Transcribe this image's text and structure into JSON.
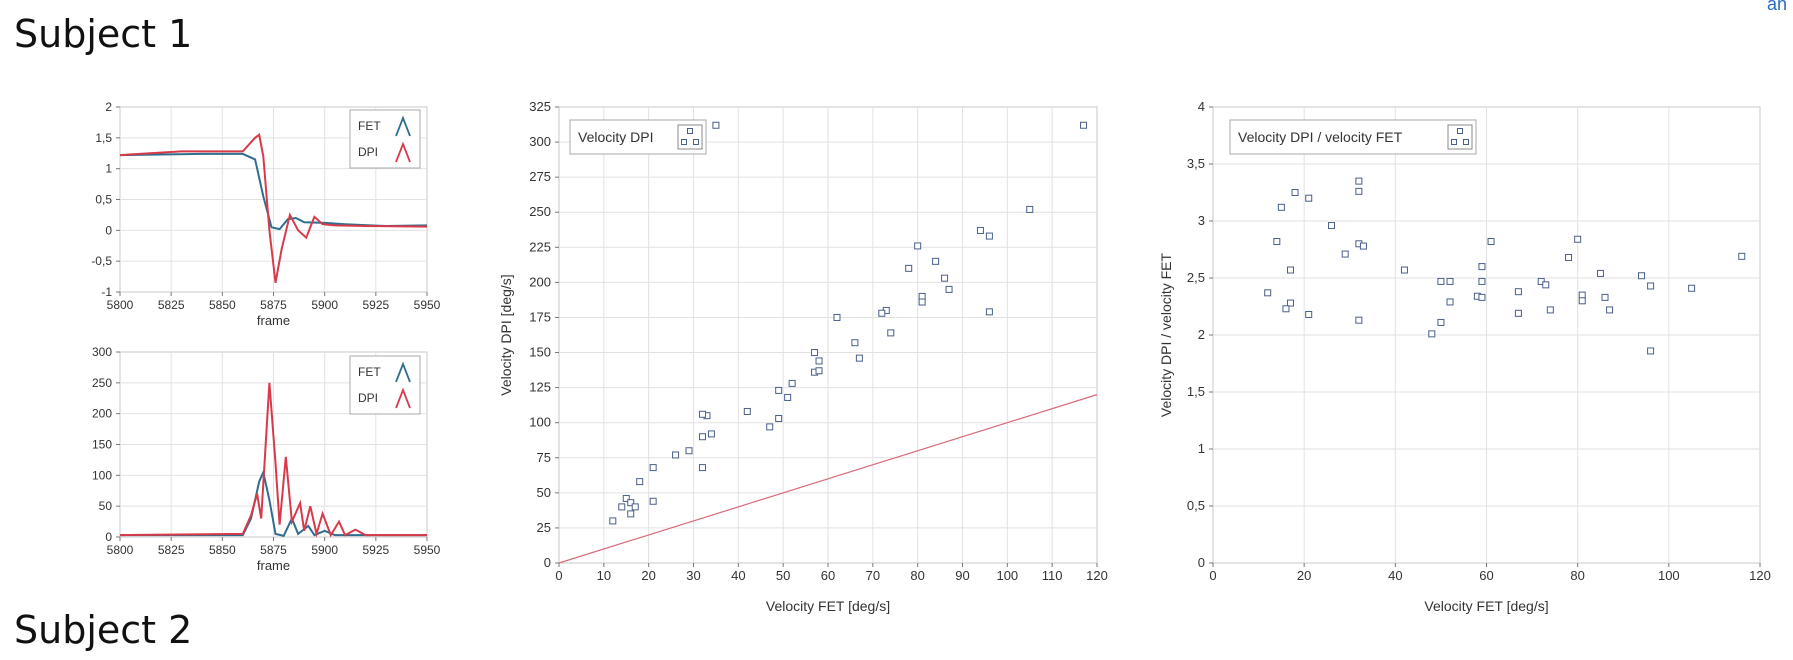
{
  "page": {
    "subject1_heading": "Subject 1",
    "subject2_heading": "Subject 2",
    "corner_text": "an"
  },
  "chart_data": [
    {
      "type": "line",
      "xlabel": "frame",
      "xlim": [
        5800,
        5950
      ],
      "ylim": [
        -1,
        2
      ],
      "xticks": [
        "5800",
        "5825",
        "5850",
        "5875",
        "5900",
        "5925",
        "5950"
      ],
      "yticks": [
        "2",
        "1,5",
        "1",
        "0,5",
        "0",
        "-0,5",
        "-1"
      ],
      "legend": [
        "FET",
        "DPI"
      ],
      "series": [
        {
          "name": "FET",
          "color": "#2f6e8e",
          "points": [
            [
              5800,
              1.22
            ],
            [
              5840,
              1.24
            ],
            [
              5860,
              1.24
            ],
            [
              5866,
              1.15
            ],
            [
              5870,
              0.55
            ],
            [
              5874,
              0.05
            ],
            [
              5878,
              0.02
            ],
            [
              5882,
              0.18
            ],
            [
              5886,
              0.2
            ],
            [
              5890,
              0.13
            ],
            [
              5900,
              0.12
            ],
            [
              5910,
              0.1
            ],
            [
              5930,
              0.07
            ],
            [
              5950,
              0.08
            ]
          ]
        },
        {
          "name": "DPI",
          "color": "#d83a4a",
          "points": [
            [
              5800,
              1.22
            ],
            [
              5830,
              1.28
            ],
            [
              5860,
              1.28
            ],
            [
              5866,
              1.5
            ],
            [
              5868,
              1.55
            ],
            [
              5870,
              1.2
            ],
            [
              5873,
              0.0
            ],
            [
              5876,
              -0.85
            ],
            [
              5879,
              -0.3
            ],
            [
              5883,
              0.25
            ],
            [
              5887,
              0.0
            ],
            [
              5891,
              -0.12
            ],
            [
              5895,
              0.22
            ],
            [
              5899,
              0.1
            ],
            [
              5905,
              0.08
            ],
            [
              5920,
              0.07
            ],
            [
              5950,
              0.06
            ]
          ]
        }
      ]
    },
    {
      "type": "line",
      "xlabel": "frame",
      "xlim": [
        5800,
        5950
      ],
      "ylim": [
        0,
        300
      ],
      "xticks": [
        "5800",
        "5825",
        "5850",
        "5875",
        "5900",
        "5925",
        "5950"
      ],
      "yticks": [
        "300",
        "250",
        "200",
        "150",
        "100",
        "50",
        "0"
      ],
      "legend": [
        "FET",
        "DPI"
      ],
      "series": [
        {
          "name": "FET",
          "color": "#2f6e8e",
          "points": [
            [
              5800,
              3
            ],
            [
              5860,
              3
            ],
            [
              5864,
              30
            ],
            [
              5868,
              90
            ],
            [
              5870,
              105
            ],
            [
              5873,
              60
            ],
            [
              5876,
              5
            ],
            [
              5880,
              2
            ],
            [
              5884,
              30
            ],
            [
              5887,
              5
            ],
            [
              5892,
              18
            ],
            [
              5895,
              3
            ],
            [
              5900,
              10
            ],
            [
              5905,
              3
            ],
            [
              5950,
              3
            ]
          ]
        },
        {
          "name": "DPI",
          "color": "#d83a4a",
          "points": [
            [
              5800,
              3
            ],
            [
              5860,
              5
            ],
            [
              5864,
              35
            ],
            [
              5867,
              70
            ],
            [
              5869,
              30
            ],
            [
              5873,
              250
            ],
            [
              5876,
              120
            ],
            [
              5878,
              20
            ],
            [
              5881,
              130
            ],
            [
              5884,
              25
            ],
            [
              5888,
              55
            ],
            [
              5890,
              10
            ],
            [
              5893,
              50
            ],
            [
              5896,
              5
            ],
            [
              5899,
              38
            ],
            [
              5903,
              3
            ],
            [
              5907,
              25
            ],
            [
              5910,
              3
            ],
            [
              5915,
              12
            ],
            [
              5920,
              3
            ],
            [
              5950,
              3
            ]
          ]
        }
      ]
    },
    {
      "type": "scatter",
      "xlabel": "Velocity FET [deg/s]",
      "ylabel": "Velocity DPI [deg/s]",
      "xlim": [
        0,
        120
      ],
      "ylim": [
        0,
        325
      ],
      "xticks": [
        "0",
        "10",
        "20",
        "30",
        "40",
        "50",
        "60",
        "70",
        "80",
        "90",
        "100",
        "110",
        "120"
      ],
      "yticks": [
        "325",
        "300",
        "275",
        "250",
        "225",
        "200",
        "175",
        "150",
        "125",
        "100",
        "75",
        "50",
        "25",
        "0"
      ],
      "legend": [
        "Velocity DPI"
      ],
      "reference_line": [
        [
          0,
          0
        ],
        [
          120,
          120
        ]
      ],
      "points": [
        [
          35,
          312
        ],
        [
          117,
          312
        ],
        [
          105,
          252
        ],
        [
          94,
          237
        ],
        [
          96,
          233
        ],
        [
          80,
          226
        ],
        [
          84,
          215
        ],
        [
          78,
          210
        ],
        [
          86,
          203
        ],
        [
          87,
          195
        ],
        [
          81,
          190
        ],
        [
          81,
          186
        ],
        [
          62,
          175
        ],
        [
          73,
          180
        ],
        [
          72,
          178
        ],
        [
          96,
          179
        ],
        [
          74,
          164
        ],
        [
          66,
          157
        ],
        [
          57,
          150
        ],
        [
          58,
          144
        ],
        [
          67,
          146
        ],
        [
          57,
          136
        ],
        [
          58,
          137
        ],
        [
          52,
          128
        ],
        [
          49,
          123
        ],
        [
          51,
          118
        ],
        [
          33,
          105
        ],
        [
          32,
          106
        ],
        [
          42,
          108
        ],
        [
          47,
          97
        ],
        [
          49,
          103
        ],
        [
          34,
          92
        ],
        [
          32,
          90
        ],
        [
          29,
          80
        ],
        [
          26,
          77
        ],
        [
          21,
          68
        ],
        [
          32,
          68
        ],
        [
          18,
          58
        ],
        [
          15,
          46
        ],
        [
          16,
          43
        ],
        [
          14,
          40
        ],
        [
          17,
          40
        ],
        [
          16,
          35
        ],
        [
          21,
          44
        ],
        [
          12,
          30
        ]
      ]
    },
    {
      "type": "scatter",
      "xlabel": "Velocity FET [deg/s]",
      "ylabel": "Velocity DPI / velocity FET",
      "xlim": [
        0,
        120
      ],
      "ylim": [
        0,
        4
      ],
      "xticks": [
        "0",
        "20",
        "40",
        "60",
        "80",
        "100",
        "120"
      ],
      "yticks": [
        "4",
        "3,5",
        "3",
        "2,5",
        "2",
        "1,5",
        "1",
        "0,5",
        "0"
      ],
      "legend": [
        "Velocity DPI / velocity FET"
      ],
      "points": [
        [
          18,
          3.25
        ],
        [
          15,
          3.12
        ],
        [
          21,
          3.2
        ],
        [
          32,
          3.35
        ],
        [
          32,
          3.26
        ],
        [
          26,
          2.96
        ],
        [
          14,
          2.82
        ],
        [
          32,
          2.8
        ],
        [
          33,
          2.78
        ],
        [
          29,
          2.71
        ],
        [
          80,
          2.84
        ],
        [
          61,
          2.82
        ],
        [
          78,
          2.68
        ],
        [
          17,
          2.57
        ],
        [
          42,
          2.57
        ],
        [
          59,
          2.6
        ],
        [
          85,
          2.54
        ],
        [
          94,
          2.52
        ],
        [
          116,
          2.69
        ],
        [
          12,
          2.37
        ],
        [
          50,
          2.47
        ],
        [
          52,
          2.47
        ],
        [
          59,
          2.47
        ],
        [
          72,
          2.47
        ],
        [
          73,
          2.44
        ],
        [
          96,
          2.43
        ],
        [
          105,
          2.41
        ],
        [
          58,
          2.34
        ],
        [
          59,
          2.33
        ],
        [
          67,
          2.38
        ],
        [
          81,
          2.35
        ],
        [
          86,
          2.33
        ],
        [
          17,
          2.28
        ],
        [
          16,
          2.23
        ],
        [
          52,
          2.29
        ],
        [
          81,
          2.3
        ],
        [
          87,
          2.22
        ],
        [
          67,
          2.19
        ],
        [
          74,
          2.22
        ],
        [
          21,
          2.18
        ],
        [
          32,
          2.13
        ],
        [
          50,
          2.11
        ],
        [
          48,
          2.01
        ],
        [
          96,
          1.86
        ]
      ]
    }
  ]
}
